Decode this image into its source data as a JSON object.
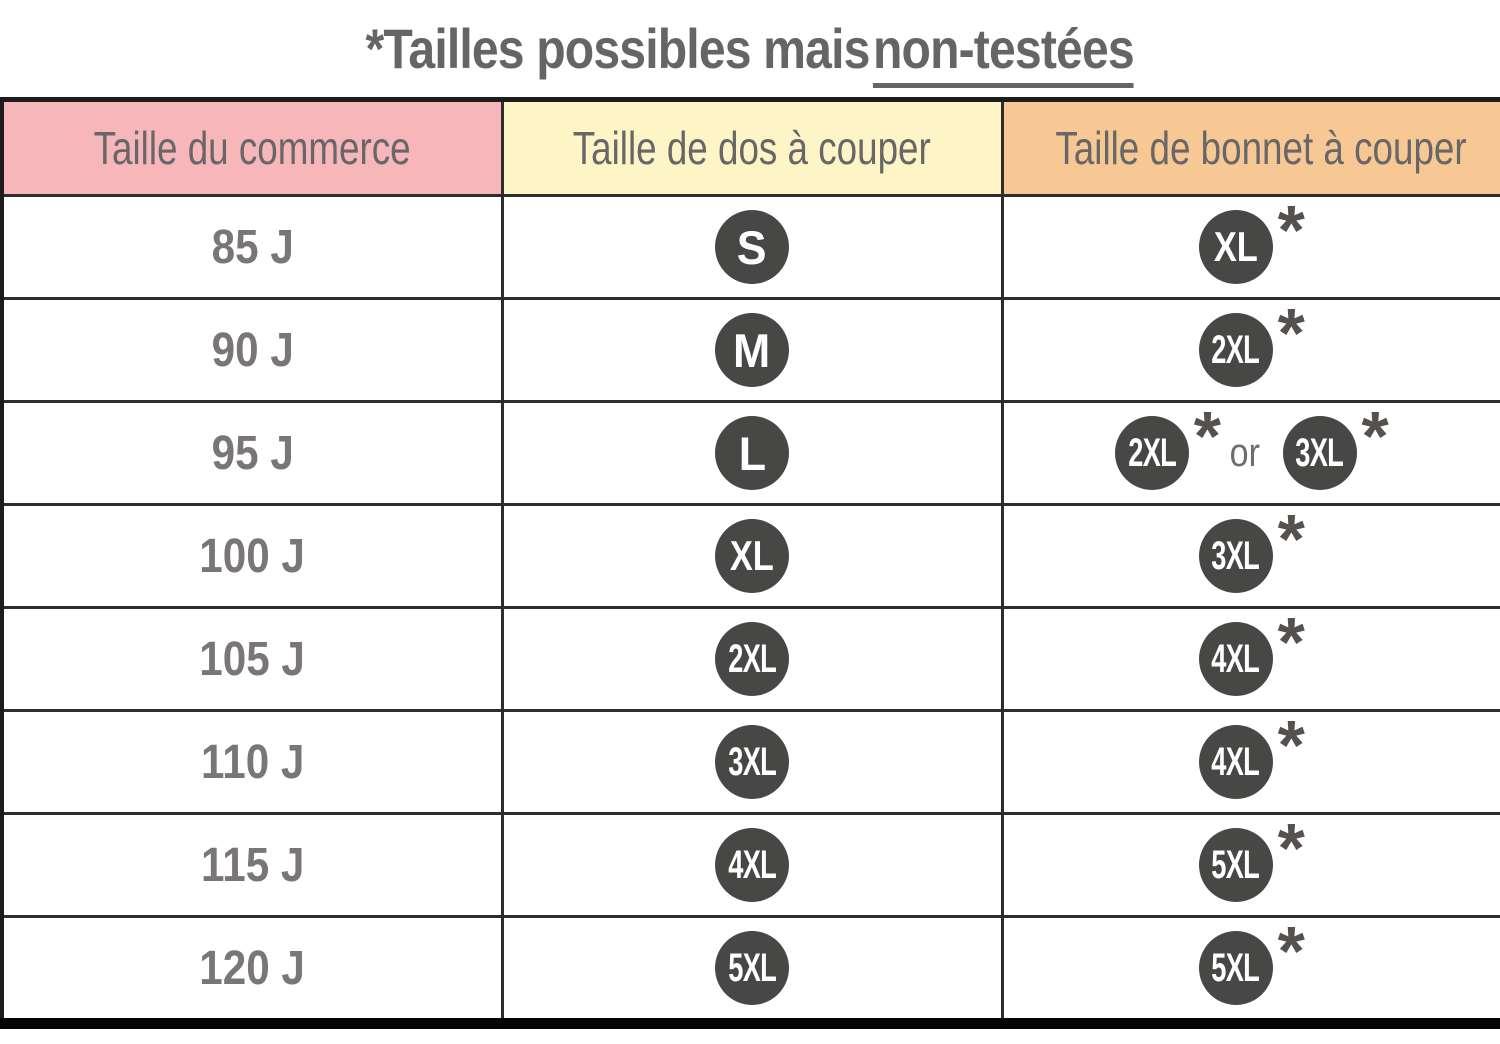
{
  "title": {
    "plain": "*Tailles possibles mais",
    "underlined": "non-testées"
  },
  "colors": {
    "header_commerce_bg": "#f7b6ba",
    "header_dos_bg": "#fdf5c6",
    "header_bonnet_bg": "#f7c894",
    "badge_bg": "#474746",
    "grid_border": "#2d2d2d",
    "title_text": "#666565",
    "body_text": "#7b7676"
  },
  "table": {
    "headers": [
      {
        "label": "Taille du commerce",
        "bg": "#f7b6ba"
      },
      {
        "label": "Taille de dos à couper",
        "bg": "#fdf5c6"
      },
      {
        "label": "Taille de bonnet à couper",
        "bg": "#f7c894"
      }
    ],
    "or_label": "or",
    "asterisk": "*",
    "rows": [
      {
        "commerce": "85 J",
        "dos": "S",
        "bonnet": [
          "XL"
        ]
      },
      {
        "commerce": "90 J",
        "dos": "M",
        "bonnet": [
          "2XL"
        ]
      },
      {
        "commerce": "95 J",
        "dos": "L",
        "bonnet": [
          "2XL",
          "3XL"
        ]
      },
      {
        "commerce": "100 J",
        "dos": "XL",
        "bonnet": [
          "3XL"
        ]
      },
      {
        "commerce": "105 J",
        "dos": "2XL",
        "bonnet": [
          "4XL"
        ]
      },
      {
        "commerce": "110 J",
        "dos": "3XL",
        "bonnet": [
          "4XL"
        ]
      },
      {
        "commerce": "115 J",
        "dos": "4XL",
        "bonnet": [
          "5XL"
        ]
      },
      {
        "commerce": "120 J",
        "dos": "5XL",
        "bonnet": [
          "5XL"
        ]
      }
    ]
  },
  "chart_data": {
    "type": "table",
    "title": "*Tailles possibles mais non-testées",
    "columns": [
      "Taille du commerce",
      "Taille de dos à couper",
      "Taille de bonnet à couper"
    ],
    "rows": [
      [
        "85 J",
        "S",
        "XL*"
      ],
      [
        "90 J",
        "M",
        "2XL*"
      ],
      [
        "95 J",
        "L",
        "2XL* or 3XL*"
      ],
      [
        "100 J",
        "XL",
        "3XL*"
      ],
      [
        "105 J",
        "2XL",
        "4XL*"
      ],
      [
        "110 J",
        "3XL",
        "4XL*"
      ],
      [
        "115 J",
        "4XL",
        "5XL*"
      ],
      [
        "120 J",
        "5XL",
        "5XL*"
      ]
    ],
    "notes": "Asterisk (*) marks cup sizes that are possible but not tested; title underlines 'non-testées'."
  }
}
